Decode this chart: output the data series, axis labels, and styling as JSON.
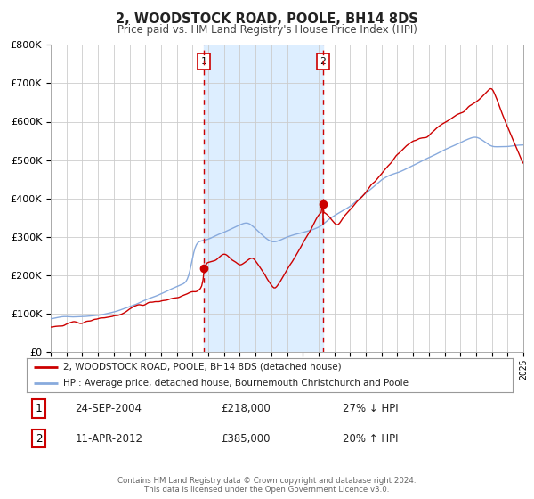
{
  "title": "2, WOODSTOCK ROAD, POOLE, BH14 8DS",
  "subtitle": "Price paid vs. HM Land Registry's House Price Index (HPI)",
  "background_color": "#ffffff",
  "plot_bg_color": "#ffffff",
  "grid_color": "#cccccc",
  "hpi_line_color": "#88aadd",
  "price_line_color": "#cc0000",
  "sale1_date_label": "24-SEP-2004",
  "sale1_price": 218000,
  "sale1_price_label": "£218,000",
  "sale1_hpi_label": "27% ↓ HPI",
  "sale1_year": 2004.73,
  "sale2_date_label": "11-APR-2012",
  "sale2_price": 385000,
  "sale2_price_label": "£385,000",
  "sale2_hpi_label": "20% ↑ HPI",
  "sale2_year": 2012.28,
  "shade_color": "#ddeeff",
  "marker_color": "#cc0000",
  "legend_line1": "2, WOODSTOCK ROAD, POOLE, BH14 8DS (detached house)",
  "legend_line2": "HPI: Average price, detached house, Bournemouth Christchurch and Poole",
  "footer1": "Contains HM Land Registry data © Crown copyright and database right 2024.",
  "footer2": "This data is licensed under the Open Government Licence v3.0.",
  "ylim_max": 800000,
  "ylim_min": 0,
  "xmin": 1995,
  "xmax": 2025
}
